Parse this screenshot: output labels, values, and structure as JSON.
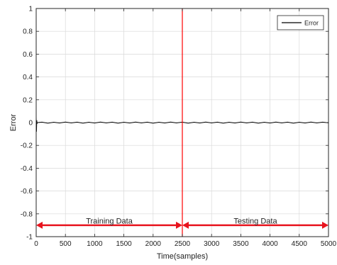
{
  "chart_data": {
    "type": "line",
    "xlabel": "Time(samples)",
    "ylabel": "Error",
    "xlim": [
      0,
      5000
    ],
    "ylim": [
      -1,
      1
    ],
    "xticks": [
      0,
      500,
      1000,
      1500,
      2000,
      2500,
      3000,
      3500,
      4000,
      4500,
      5000
    ],
    "yticks": [
      -1,
      -0.8,
      -0.6,
      -0.4,
      -0.2,
      0,
      0.2,
      0.4,
      0.6,
      0.8,
      1
    ],
    "xtick_labels": [
      "0",
      "500",
      "1000",
      "1500",
      "2000",
      "2500",
      "3000",
      "3500",
      "4000",
      "4500",
      "5000"
    ],
    "ytick_labels": [
      "-1",
      "-0.8",
      "-0.6",
      "-0.4",
      "-0.2",
      "0",
      "0.2",
      "0.4",
      "0.6",
      "0.8",
      "1"
    ],
    "grid": true,
    "legend": {
      "position": "top-right",
      "entries": [
        "Error"
      ]
    },
    "series": [
      {
        "name": "Error",
        "color": "#000000",
        "x": [
          0,
          5,
          10,
          15,
          20,
          100,
          200,
          300,
          400,
          500,
          600,
          700,
          800,
          900,
          1000,
          1100,
          1200,
          1300,
          1400,
          1500,
          1600,
          1700,
          1800,
          1900,
          2000,
          2100,
          2200,
          2300,
          2400,
          2500,
          2600,
          2700,
          2800,
          2900,
          3000,
          3100,
          3200,
          3300,
          3400,
          3500,
          3600,
          3700,
          3800,
          3900,
          4000,
          4100,
          4200,
          4300,
          4400,
          4500,
          4600,
          4700,
          4800,
          4900,
          5000
        ],
        "y": [
          0.05,
          -0.08,
          0.02,
          -0.01,
          0,
          0.004,
          -0.005,
          0.003,
          -0.004,
          0.005,
          -0.003,
          0.004,
          -0.005,
          0.003,
          -0.004,
          0.005,
          -0.003,
          0.004,
          -0.005,
          0.003,
          -0.004,
          0.005,
          -0.003,
          0.004,
          -0.005,
          0.003,
          -0.004,
          0.005,
          -0.003,
          0.004,
          -0.005,
          0.003,
          -0.004,
          0.005,
          -0.003,
          0.004,
          -0.005,
          0.003,
          -0.004,
          0.005,
          -0.003,
          0.004,
          -0.005,
          0.003,
          -0.004,
          0.005,
          -0.003,
          0.004,
          -0.005,
          0.003,
          -0.004,
          0.005,
          -0.003,
          0.004,
          -0.002
        ]
      }
    ],
    "split": {
      "x": 2500,
      "color": "#ff0000"
    },
    "annotations": [
      {
        "text": "Training Data",
        "x_from": 0,
        "x_to": 2500,
        "y": -0.88,
        "arrow_y": -0.9
      },
      {
        "text": "Testing Data",
        "x_from": 2500,
        "x_to": 5000,
        "y": -0.88,
        "arrow_y": -0.9
      }
    ],
    "arrow_color": "#e8141e"
  }
}
